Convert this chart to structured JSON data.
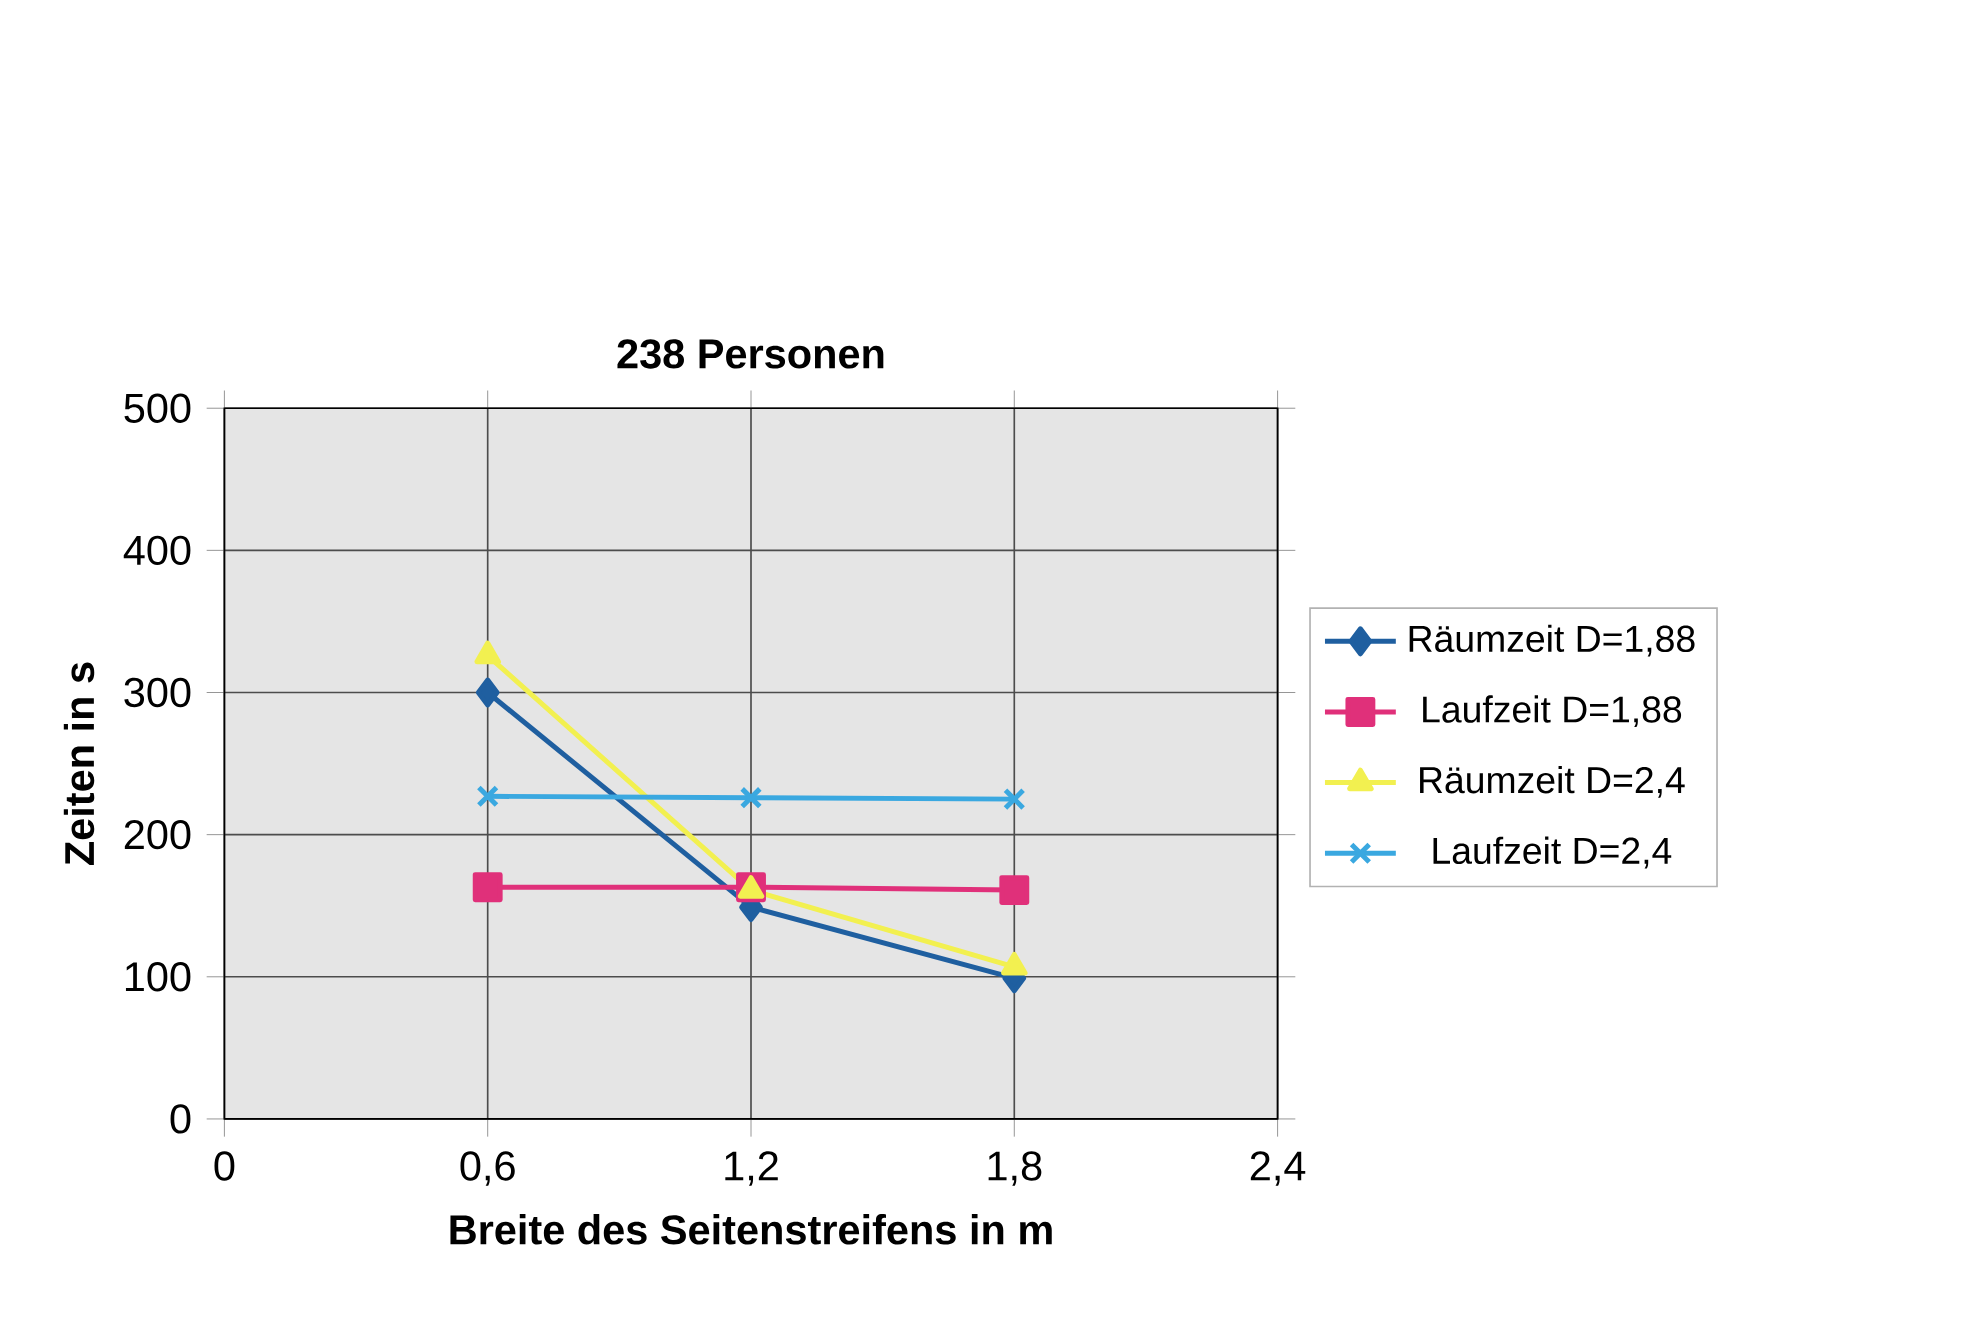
{
  "chart_data": {
    "type": "line",
    "title": "238 Personen",
    "xlabel": "Breite des Seitenstreifens in m",
    "ylabel": "Zeiten in s",
    "x": [
      0.6,
      1.2,
      1.8
    ],
    "series": [
      {
        "name": "Räumzeit D=1,88",
        "color": "#1f5fa0",
        "marker": "diamond",
        "values": [
          300,
          149,
          99
        ]
      },
      {
        "name": "Laufzeit D=1,88",
        "color": "#e0307a",
        "marker": "square",
        "values": [
          163,
          163,
          161
        ]
      },
      {
        "name": "Räumzeit D=2,4",
        "color": "#f2f050",
        "marker": "triangle",
        "values": [
          326,
          161,
          107
        ]
      },
      {
        "name": "Laufzeit D=2,4",
        "color": "#3aa8e0",
        "marker": "cross",
        "values": [
          227,
          226,
          225
        ]
      }
    ],
    "xlim": [
      0,
      2.4
    ],
    "xticks": [
      0,
      {
        "value": 0.6,
        "label": "0,6"
      },
      {
        "value": 1.2,
        "label": "1,2"
      },
      {
        "value": 1.8,
        "label": "1,8"
      },
      {
        "value": 2.4,
        "label": "2,4"
      }
    ],
    "ylim": [
      0,
      500
    ],
    "yticks": [
      0,
      100,
      200,
      300,
      400,
      500
    ],
    "grid": true,
    "legend": "right",
    "line_style": "solid"
  }
}
